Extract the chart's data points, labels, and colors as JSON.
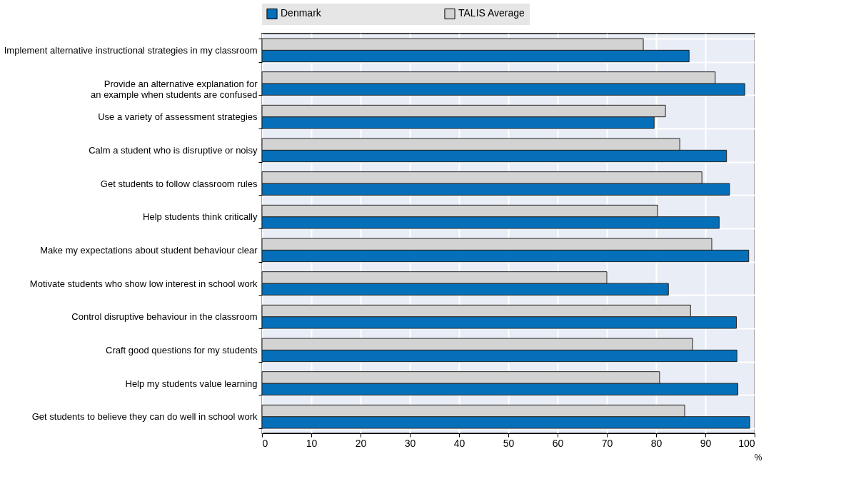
{
  "chart_data": {
    "type": "bar",
    "orientation": "horizontal",
    "xlabel": "%",
    "categories": [
      "Implement alternative instructional strategies in my classroom",
      "Provide an alternative explanation for\nan example when students are confused",
      "Use a variety of assessment strategies",
      "Calm a student who is disruptive or noisy",
      "Get students to follow classroom rules",
      "Help students think critically",
      "Make my expectations about student behaviour clear",
      "Motivate students who show low interest in school work",
      "Control disruptive behaviour in the classroom",
      "Craft good questions for my students",
      "Help my students value learning",
      "Get students to believe they can do well in school work"
    ],
    "series": [
      {
        "name": "Denmark",
        "color": "#0570b9",
        "values": [
          86.7,
          98.0,
          79.6,
          94.3,
          94.9,
          92.8,
          98.8,
          82.5,
          96.3,
          96.4,
          96.6,
          99.0
        ]
      },
      {
        "name": "TALIS Average",
        "color": "#d3d3d3",
        "values": [
          77.4,
          92.0,
          81.9,
          84.8,
          89.3,
          80.3,
          91.3,
          70.0,
          87.0,
          87.4,
          80.7,
          85.8
        ]
      }
    ],
    "xlim": [
      0,
      100
    ],
    "xticks": [
      0,
      10,
      20,
      30,
      40,
      50,
      60,
      70,
      80,
      90,
      100
    ],
    "grid": "x",
    "legend": "top"
  }
}
